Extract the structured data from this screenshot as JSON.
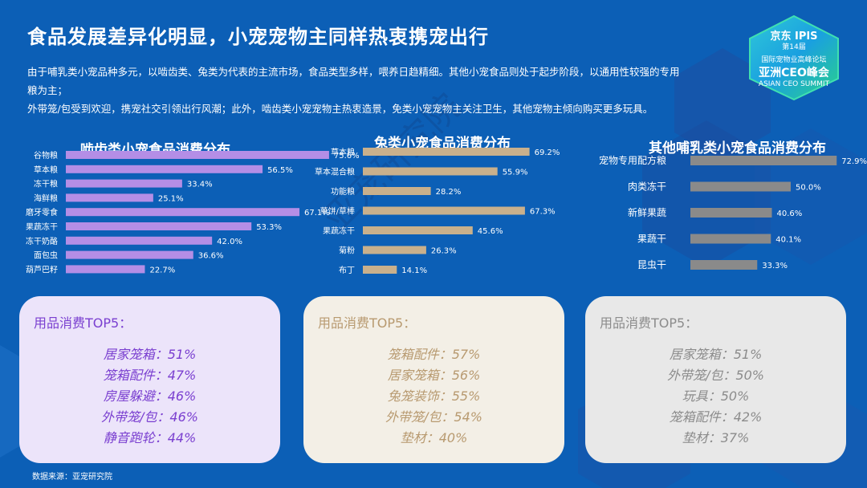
{
  "page": {
    "title": "食品发展差异化明显，小宠宠物主同样热衷携宠出行",
    "intro_lines": [
      "由于哺乳类小宠品种多元，以啮齿类、兔类为代表的主流市场，食品类型多样，喂养日趋精细。其他小宠食品则处于起步阶段，以通用性较强的专用",
      "粮为主；",
      "外带笼/包受到欢迎，携宠社交引领出行风潮；此外，啮齿类小宠宠物主热衷造景，免类小宠宠物主关注卫生，其他宠物主倾向购买更多玩具。"
    ],
    "source": "数据来源：亚宠研究院",
    "watermark": "亚宠研究院"
  },
  "logo": {
    "line1": "京东 IPIS",
    "line2": "第14届",
    "line3": "国际宠物业高峰论坛",
    "line4": "亚洲CEO峰会",
    "line5": "ASIAN CEO SUMMIT"
  },
  "colors": {
    "background": "#0c5fb6",
    "rodent_bar": "#b48ee6",
    "rabbit_bar": "#c9b08c",
    "other_bar": "#8a8a8a",
    "rodent_text": "#7a3fd0",
    "rabbit_text": "#b89a70",
    "other_text": "#8c8c8c"
  },
  "chart_data": [
    {
      "type": "bar",
      "title": "啮齿类小宠食品消费分布",
      "categories": [
        "谷物粮",
        "草本粮",
        "冻干粮",
        "海鲜粮",
        "磨牙零食",
        "果蔬冻干",
        "冻干奶酪",
        "面包虫",
        "葫芦巴籽"
      ],
      "values": [
        75.6,
        56.5,
        33.4,
        25.1,
        67.1,
        53.3,
        42.0,
        36.6,
        22.7
      ],
      "labels": [
        "75.6%",
        "56.5%",
        "33.4%",
        "25.1%",
        "67.1%",
        "53.3%",
        "42.0%",
        "36.6%",
        "22.7%"
      ],
      "xlim": [
        0,
        80
      ],
      "orientation": "horizontal"
    },
    {
      "type": "bar",
      "title": "兔类小宠食品消费分布",
      "categories": [
        "草本粮",
        "草本混合粮",
        "功能粮",
        "草饼/草棒",
        "果蔬冻干",
        "菊粉",
        "布丁"
      ],
      "values": [
        69.2,
        55.9,
        28.2,
        67.3,
        45.6,
        26.3,
        14.1
      ],
      "labels": [
        "69.2%",
        "55.9%",
        "28.2%",
        "67.3%",
        "45.6%",
        "26.3%",
        "14.1%"
      ],
      "xlim": [
        0,
        80
      ],
      "orientation": "horizontal"
    },
    {
      "type": "bar",
      "title": "其他哺乳类小宠食品消费分布",
      "categories": [
        "宠物专用配方粮",
        "肉类冻干",
        "新鲜果蔬",
        "果蔬干",
        "昆虫干"
      ],
      "values": [
        72.9,
        50.0,
        40.6,
        40.1,
        33.3
      ],
      "labels": [
        "72.9%",
        "50.0%",
        "40.6%",
        "40.1%",
        "33.3%"
      ],
      "xlim": [
        0,
        80
      ],
      "orientation": "horizontal"
    }
  ],
  "cards": [
    {
      "heading": "用品消费TOP5：",
      "items": [
        "居家笼箱：51%",
        "笼箱配件：47%",
        "房屋躲避：46%",
        "外带笼/包：46%",
        "静音跑轮：44%"
      ]
    },
    {
      "heading": "用品消费TOP5：",
      "items": [
        "笼箱配件：57%",
        "居家笼箱：56%",
        "兔笼装饰：55%",
        "外带笼/包：54%",
        "垫材：40%"
      ]
    },
    {
      "heading": "用品消费TOP5：",
      "items": [
        "居家笼箱：51%",
        "外带笼/包：50%",
        "玩具：50%",
        "笼箱配件：42%",
        "垫材：37%"
      ]
    }
  ]
}
